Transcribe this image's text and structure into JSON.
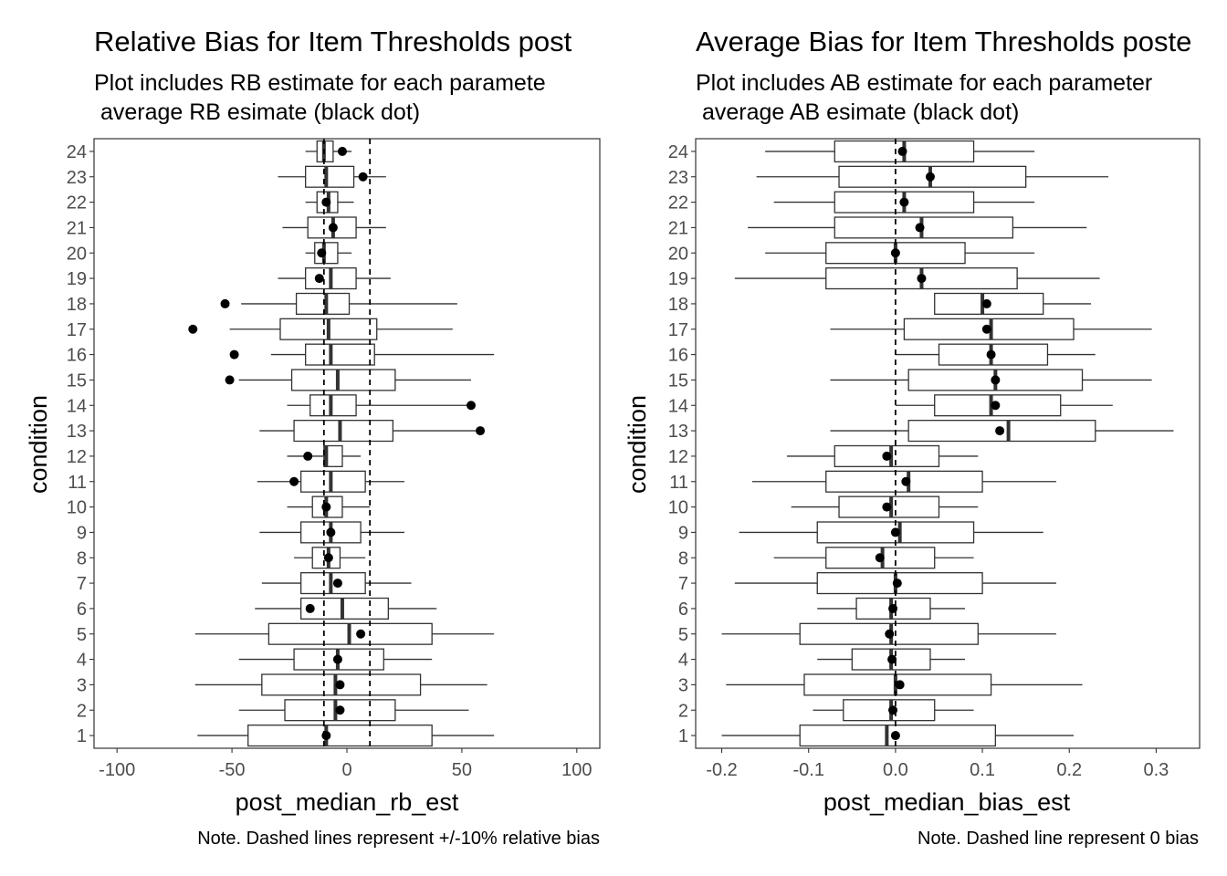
{
  "panels": [
    {
      "title": "Relative Bias for Item Thresholds post",
      "subtitle_line1": "Plot includes RB estimate for each paramete",
      "subtitle_line2": " average RB esimate (black dot)",
      "caption": "Note. Dashed lines represent +/-10% relative bias"
    },
    {
      "title": "Average Bias for Item Thresholds poste",
      "subtitle_line1": "Plot includes AB estimate for each parameter",
      "subtitle_line2": " average AB esimate (black dot)",
      "caption": "Note. Dashed line represent 0 bias"
    }
  ],
  "chart_data": [
    {
      "type": "boxplot",
      "title": "Relative Bias for Item Thresholds post",
      "subtitle": "Plot includes RB estimate for each paramete\n average RB esimate (black dot)",
      "xlabel": "post_median_rb_est",
      "ylabel": "condition",
      "caption": "Note. Dashed lines represent +/-10% relative bias",
      "xlim": [
        -110,
        110
      ],
      "xticks": [
        -100,
        -50,
        0,
        50,
        100
      ],
      "reference_lines": [
        -10,
        10
      ],
      "orientation": "horizontal",
      "grid": false,
      "conditions": [
        "1",
        "2",
        "3",
        "4",
        "5",
        "6",
        "7",
        "8",
        "9",
        "10",
        "11",
        "12",
        "13",
        "14",
        "15",
        "16",
        "17",
        "18",
        "19",
        "20",
        "21",
        "22",
        "23",
        "24"
      ],
      "boxes": [
        {
          "min": -65,
          "q1": -43,
          "median": -9,
          "q3": 37,
          "max": 64,
          "mean": -9
        },
        {
          "min": -47,
          "q1": -27,
          "median": -5,
          "q3": 21,
          "max": 53,
          "mean": -3
        },
        {
          "min": -66,
          "q1": -37,
          "median": -5,
          "q3": 32,
          "max": 61,
          "mean": -3
        },
        {
          "min": -47,
          "q1": -23,
          "median": -4,
          "q3": 16,
          "max": 37,
          "mean": -4
        },
        {
          "min": -66,
          "q1": -34,
          "median": 1,
          "q3": 37,
          "max": 64,
          "mean": 6
        },
        {
          "min": -40,
          "q1": -20,
          "median": -2,
          "q3": 18,
          "max": 39,
          "mean": -16
        },
        {
          "min": -37,
          "q1": -20,
          "median": -7,
          "q3": 8,
          "max": 28,
          "mean": -4
        },
        {
          "min": -23,
          "q1": -15,
          "median": -8,
          "q3": -3,
          "max": 8,
          "mean": -8
        },
        {
          "min": -38,
          "q1": -20,
          "median": -7,
          "q3": 6,
          "max": 25,
          "mean": -7
        },
        {
          "min": -26,
          "q1": -15,
          "median": -9,
          "q3": -2,
          "max": 10,
          "mean": -9
        },
        {
          "min": -39,
          "q1": -20,
          "median": -7,
          "q3": 8,
          "max": 25,
          "mean": -23
        },
        {
          "min": -26,
          "q1": -10,
          "median": -9,
          "q3": -2,
          "max": 6,
          "mean": -17
        },
        {
          "min": -38,
          "q1": -23,
          "median": -3,
          "q3": 20,
          "max": 58,
          "mean": 58
        },
        {
          "min": -26,
          "q1": -16,
          "median": -7,
          "q3": 4,
          "max": 54,
          "mean": 54
        },
        {
          "min": -47,
          "q1": -24,
          "median": -4,
          "q3": 21,
          "max": 54,
          "mean": -51
        },
        {
          "min": -33,
          "q1": -18,
          "median": -7,
          "q3": 12,
          "max": 64,
          "mean": -49
        },
        {
          "min": -51,
          "q1": -29,
          "median": -8,
          "q3": 13,
          "max": 46,
          "mean": -67
        },
        {
          "min": -46,
          "q1": -22,
          "median": -9,
          "q3": 1,
          "max": 48,
          "mean": -53
        },
        {
          "min": -30,
          "q1": -18,
          "median": -7,
          "q3": 4,
          "max": 19,
          "mean": -12
        },
        {
          "min": -18,
          "q1": -14,
          "median": -10,
          "q3": -4,
          "max": 2,
          "mean": -11
        },
        {
          "min": -28,
          "q1": -17,
          "median": -6,
          "q3": 4,
          "max": 17,
          "mean": -6
        },
        {
          "min": -18,
          "q1": -13,
          "median": -8,
          "q3": -4,
          "max": 3,
          "mean": -9
        },
        {
          "min": -30,
          "q1": -18,
          "median": -9,
          "q3": 3,
          "max": 17,
          "mean": 7
        },
        {
          "min": -18,
          "q1": -13,
          "median": -10,
          "q3": -6,
          "max": 2,
          "mean": -2
        }
      ]
    },
    {
      "type": "boxplot",
      "title": "Average Bias for Item Thresholds poste",
      "subtitle": "Plot includes AB estimate for each parameter\n average AB esimate (black dot)",
      "xlabel": "post_median_bias_est",
      "ylabel": "condition",
      "caption": "Note. Dashed line represent 0 bias",
      "xlim": [
        -0.23,
        0.35
      ],
      "xticks": [
        -0.2,
        -0.1,
        0.0,
        0.1,
        0.2,
        0.3
      ],
      "reference_lines": [
        0
      ],
      "orientation": "horizontal",
      "grid": false,
      "conditions": [
        "1",
        "2",
        "3",
        "4",
        "5",
        "6",
        "7",
        "8",
        "9",
        "10",
        "11",
        "12",
        "13",
        "14",
        "15",
        "16",
        "17",
        "18",
        "19",
        "20",
        "21",
        "22",
        "23",
        "24"
      ],
      "boxes": [
        {
          "min": -0.2,
          "q1": -0.11,
          "median": -0.01,
          "q3": 0.115,
          "max": 0.205,
          "mean": 0.0
        },
        {
          "min": -0.095,
          "q1": -0.06,
          "median": -0.005,
          "q3": 0.045,
          "max": 0.09,
          "mean": -0.003
        },
        {
          "min": -0.195,
          "q1": -0.105,
          "median": 0.0,
          "q3": 0.11,
          "max": 0.215,
          "mean": 0.005
        },
        {
          "min": -0.09,
          "q1": -0.05,
          "median": -0.005,
          "q3": 0.04,
          "max": 0.08,
          "mean": -0.004
        },
        {
          "min": -0.2,
          "q1": -0.11,
          "median": -0.005,
          "q3": 0.095,
          "max": 0.185,
          "mean": -0.007
        },
        {
          "min": -0.09,
          "q1": -0.045,
          "median": -0.005,
          "q3": 0.04,
          "max": 0.08,
          "mean": -0.003
        },
        {
          "min": -0.185,
          "q1": -0.09,
          "median": 0.0,
          "q3": 0.1,
          "max": 0.185,
          "mean": 0.002
        },
        {
          "min": -0.14,
          "q1": -0.08,
          "median": -0.015,
          "q3": 0.045,
          "max": 0.09,
          "mean": -0.018
        },
        {
          "min": -0.18,
          "q1": -0.09,
          "median": 0.005,
          "q3": 0.09,
          "max": 0.17,
          "mean": 0.0
        },
        {
          "min": -0.12,
          "q1": -0.065,
          "median": -0.005,
          "q3": 0.05,
          "max": 0.095,
          "mean": -0.01
        },
        {
          "min": -0.165,
          "q1": -0.08,
          "median": 0.015,
          "q3": 0.1,
          "max": 0.185,
          "mean": 0.012
        },
        {
          "min": -0.125,
          "q1": -0.07,
          "median": -0.005,
          "q3": 0.05,
          "max": 0.095,
          "mean": -0.01
        },
        {
          "min": -0.075,
          "q1": 0.015,
          "median": 0.13,
          "q3": 0.23,
          "max": 0.32,
          "mean": 0.12
        },
        {
          "min": 0.0,
          "q1": 0.045,
          "median": 0.11,
          "q3": 0.19,
          "max": 0.25,
          "mean": 0.115
        },
        {
          "min": -0.075,
          "q1": 0.015,
          "median": 0.115,
          "q3": 0.215,
          "max": 0.295,
          "mean": 0.115
        },
        {
          "min": 0.0,
          "q1": 0.05,
          "median": 0.11,
          "q3": 0.175,
          "max": 0.23,
          "mean": 0.11
        },
        {
          "min": -0.075,
          "q1": 0.01,
          "median": 0.11,
          "q3": 0.205,
          "max": 0.295,
          "mean": 0.105
        },
        {
          "min": 0.045,
          "q1": 0.045,
          "median": 0.1,
          "q3": 0.17,
          "max": 0.225,
          "mean": 0.105
        },
        {
          "min": -0.185,
          "q1": -0.08,
          "median": 0.03,
          "q3": 0.14,
          "max": 0.235,
          "mean": 0.03
        },
        {
          "min": -0.15,
          "q1": -0.08,
          "median": 0.0,
          "q3": 0.08,
          "max": 0.16,
          "mean": 0.0
        },
        {
          "min": -0.17,
          "q1": -0.07,
          "median": 0.03,
          "q3": 0.135,
          "max": 0.22,
          "mean": 0.028
        },
        {
          "min": -0.14,
          "q1": -0.07,
          "median": 0.01,
          "q3": 0.09,
          "max": 0.16,
          "mean": 0.01
        },
        {
          "min": -0.16,
          "q1": -0.065,
          "median": 0.04,
          "q3": 0.15,
          "max": 0.245,
          "mean": 0.04
        },
        {
          "min": -0.15,
          "q1": -0.07,
          "median": 0.01,
          "q3": 0.09,
          "max": 0.16,
          "mean": 0.008
        }
      ]
    }
  ],
  "colors": {
    "box_fill": "#ffffff",
    "box_stroke": "#333333",
    "median": "#333333",
    "mean_dot": "#000000",
    "axis_text": "#4d4d4d",
    "panel_border": "#333333"
  }
}
